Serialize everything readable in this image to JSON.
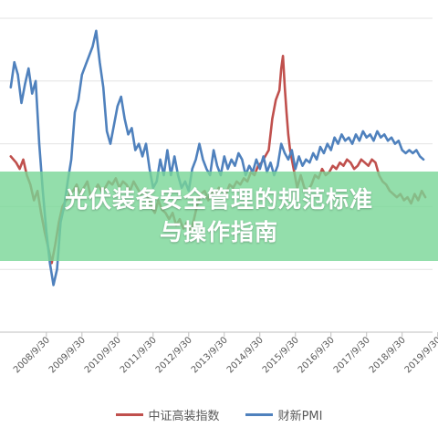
{
  "title_banner": {
    "line1": "光伏装备安全管理的规范标准",
    "line2": "与操作指南"
  },
  "chart_data": {
    "type": "line",
    "title": "",
    "xlabel": "",
    "ylabel": "",
    "x_tick_labels": [
      "2008/9/30",
      "2009/9/30",
      "2010/9/30",
      "2011/9/30",
      "2012/9/30",
      "2013/9/30",
      "2014/9/30",
      "2015/9/30",
      "2016/9/30",
      "2017/9/30",
      "2018/9/30",
      "2019/9/30"
    ],
    "grid": "horizontal",
    "legend_position": "bottom",
    "series": [
      {
        "name": "中证高装指数",
        "color": "#c0504d",
        "x": [
          2007.75,
          2007.9,
          2008.0,
          2008.1,
          2008.2,
          2008.3,
          2008.4,
          2008.5,
          2008.6,
          2008.7,
          2008.8,
          2008.9,
          2009.0,
          2009.1,
          2009.2,
          2009.3,
          2009.4,
          2009.5,
          2009.6,
          2009.7,
          2009.8,
          2009.9,
          2010.0,
          2010.1,
          2010.2,
          2010.3,
          2010.4,
          2010.5,
          2010.6,
          2010.7,
          2010.8,
          2010.9,
          2011.0,
          2011.1,
          2011.2,
          2011.3,
          2011.4,
          2011.5,
          2011.6,
          2011.7,
          2011.8,
          2011.9,
          2012.0,
          2012.1,
          2012.2,
          2012.3,
          2012.4,
          2012.5,
          2012.6,
          2012.7,
          2012.8,
          2012.9,
          2013.0,
          2013.1,
          2013.2,
          2013.3,
          2013.4,
          2013.5,
          2013.6,
          2013.7,
          2013.8,
          2013.9,
          2014.0,
          2014.1,
          2014.2,
          2014.3,
          2014.4,
          2014.5,
          2014.6,
          2014.7,
          2014.8,
          2014.9,
          2015.0,
          2015.1,
          2015.2,
          2015.3,
          2015.35,
          2015.4,
          2015.45,
          2015.5,
          2015.55,
          2015.6,
          2015.7,
          2015.8,
          2015.9,
          2016.0,
          2016.1,
          2016.2,
          2016.3,
          2016.4,
          2016.5,
          2016.6,
          2016.7,
          2016.8,
          2016.9,
          2017.0,
          2017.1,
          2017.2,
          2017.3,
          2017.4,
          2017.5,
          2017.6,
          2017.7,
          2017.8,
          2017.9,
          2018.0,
          2018.1,
          2018.2,
          2018.3,
          2018.4,
          2018.5,
          2018.6,
          2018.7,
          2018.8,
          2018.9,
          2019.0,
          2019.1,
          2019.2,
          2019.3,
          2019.4
        ],
        "y": [
          56,
          54,
          52,
          55,
          50,
          47,
          42,
          45,
          38,
          32,
          27,
          22,
          28,
          35,
          40,
          42,
          44,
          45,
          47,
          44,
          46,
          48,
          43,
          45,
          47,
          45,
          46,
          48,
          47,
          49,
          46,
          48,
          47,
          45,
          48,
          46,
          44,
          45,
          43,
          40,
          38,
          42,
          39,
          38,
          36,
          38,
          34,
          36,
          33,
          35,
          32,
          36,
          41,
          44,
          45,
          42,
          45,
          44,
          46,
          45,
          44,
          47,
          46,
          48,
          47,
          49,
          48,
          51,
          50,
          53,
          54,
          56,
          58,
          68,
          74,
          77,
          84,
          88,
          78,
          70,
          63,
          58,
          52,
          46,
          50,
          46,
          45,
          47,
          50,
          49,
          52,
          50,
          51,
          53,
          52,
          54,
          53,
          55,
          54,
          52,
          53,
          55,
          54,
          53,
          55,
          54,
          50,
          48,
          47,
          45,
          44,
          43,
          44,
          42,
          43,
          41,
          44,
          42,
          45,
          43
        ]
      },
      {
        "name": "财新PMI",
        "color": "#4f81bd",
        "x": [
          2007.75,
          2007.85,
          2007.95,
          2008.05,
          2008.15,
          2008.25,
          2008.35,
          2008.45,
          2008.55,
          2008.65,
          2008.75,
          2008.85,
          2008.95,
          2009.05,
          2009.15,
          2009.25,
          2009.35,
          2009.45,
          2009.55,
          2009.65,
          2009.75,
          2009.85,
          2009.95,
          2010.05,
          2010.15,
          2010.25,
          2010.35,
          2010.45,
          2010.55,
          2010.65,
          2010.75,
          2010.85,
          2010.95,
          2011.05,
          2011.15,
          2011.25,
          2011.35,
          2011.45,
          2011.55,
          2011.65,
          2011.75,
          2011.85,
          2011.95,
          2012.05,
          2012.15,
          2012.25,
          2012.35,
          2012.45,
          2012.55,
          2012.65,
          2012.75,
          2012.85,
          2012.95,
          2013.05,
          2013.15,
          2013.25,
          2013.35,
          2013.45,
          2013.55,
          2013.65,
          2013.75,
          2013.85,
          2013.95,
          2014.05,
          2014.15,
          2014.25,
          2014.35,
          2014.45,
          2014.55,
          2014.65,
          2014.75,
          2014.85,
          2014.95,
          2015.05,
          2015.15,
          2015.25,
          2015.35,
          2015.45,
          2015.55,
          2015.65,
          2015.75,
          2015.85,
          2015.95,
          2016.05,
          2016.15,
          2016.25,
          2016.35,
          2016.45,
          2016.55,
          2016.65,
          2016.75,
          2016.85,
          2016.95,
          2017.05,
          2017.15,
          2017.25,
          2017.35,
          2017.45,
          2017.55,
          2017.65,
          2017.75,
          2017.85,
          2017.95,
          2018.05,
          2018.15,
          2018.25,
          2018.35,
          2018.45,
          2018.55,
          2018.65,
          2018.75,
          2018.85,
          2018.95,
          2019.05,
          2019.15,
          2019.25,
          2019.35
        ],
        "y": [
          78,
          86,
          82,
          73,
          79,
          84,
          76,
          80,
          60,
          45,
          32,
          22,
          15,
          20,
          35,
          40,
          48,
          55,
          70,
          74,
          82,
          85,
          88,
          91,
          96,
          86,
          78,
          64,
          60,
          66,
          72,
          75,
          68,
          63,
          65,
          58,
          60,
          56,
          60,
          52,
          46,
          48,
          55,
          50,
          58,
          50,
          56,
          50,
          46,
          48,
          45,
          52,
          55,
          60,
          55,
          52,
          50,
          58,
          53,
          50,
          56,
          52,
          55,
          53,
          57,
          55,
          50,
          53,
          51,
          55,
          52,
          56,
          51,
          54,
          50,
          53,
          60,
          57,
          55,
          58,
          52,
          56,
          53,
          55,
          54,
          57,
          55,
          59,
          57,
          60,
          58,
          62,
          60,
          63,
          61,
          62,
          60,
          63,
          61,
          64,
          62,
          63,
          61,
          64,
          62,
          63,
          61,
          62,
          60,
          61,
          58,
          57,
          58,
          57,
          58,
          56,
          55
        ]
      }
    ],
    "xlim": [
      2007.6,
      2019.45
    ],
    "ylim": [
      0,
      100
    ],
    "y_gridlines": [
      0,
      20,
      40,
      60,
      80,
      100
    ]
  }
}
